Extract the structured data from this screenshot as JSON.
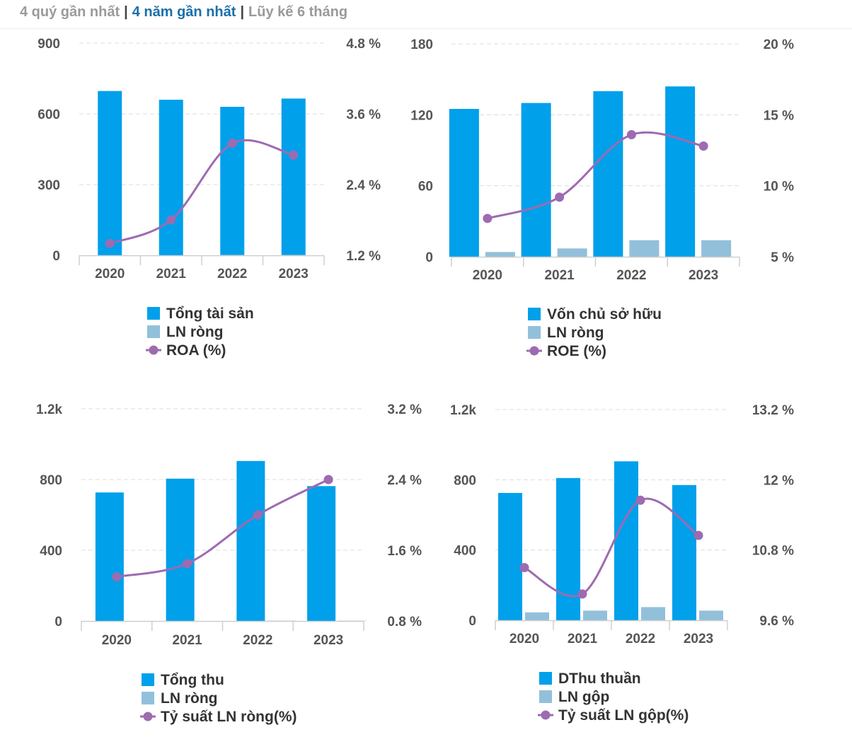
{
  "tabs": [
    {
      "label": "4 quý gần nhất",
      "active": false
    },
    {
      "label": "4 năm gần nhất",
      "active": true
    },
    {
      "label": "Lũy kế 6 tháng",
      "active": false
    }
  ],
  "colors": {
    "bar_primary": "#00a0ea",
    "bar_secondary": "#92c0da",
    "line": "#9d6bb0",
    "axis_text": "#555555",
    "grid": "#dcdcdc"
  },
  "chart_data": [
    {
      "type": "bar",
      "categories": [
        "2020",
        "2021",
        "2022",
        "2023"
      ],
      "left_ticks": [
        "0",
        "300",
        "600",
        "900"
      ],
      "right_ticks": [
        "1.2 %",
        "2.4 %",
        "3.6 %",
        "4.8 %"
      ],
      "ylim_left": [
        0,
        900
      ],
      "ylim_right": [
        1.2,
        4.8
      ],
      "series": [
        {
          "name": "Tổng tài sản",
          "kind": "bar",
          "axis": "left",
          "values": [
            697,
            660,
            630,
            665
          ]
        },
        {
          "name": "LN ròng",
          "kind": "bar",
          "axis": "left",
          "values": [
            1,
            1,
            2,
            2
          ]
        },
        {
          "name": "ROA (%)",
          "kind": "line",
          "axis": "right",
          "values": [
            1.4,
            1.8,
            3.1,
            2.9
          ]
        }
      ]
    },
    {
      "type": "bar",
      "categories": [
        "2020",
        "2021",
        "2022",
        "2023"
      ],
      "left_ticks": [
        "0",
        "60",
        "120",
        "180"
      ],
      "right_ticks": [
        "5 %",
        "10 %",
        "15 %",
        "20 %"
      ],
      "ylim_left": [
        0,
        180
      ],
      "ylim_right": [
        5,
        20
      ],
      "series": [
        {
          "name": "Vốn chủ sở hữu",
          "kind": "bar",
          "axis": "left",
          "values": [
            125,
            130,
            140,
            144
          ]
        },
        {
          "name": "LN ròng",
          "kind": "bar",
          "axis": "left",
          "values": [
            4,
            7,
            14,
            14
          ]
        },
        {
          "name": "ROE (%)",
          "kind": "line",
          "axis": "right",
          "values": [
            7.7,
            9.2,
            13.6,
            12.8
          ]
        }
      ]
    },
    {
      "type": "bar",
      "categories": [
        "2020",
        "2021",
        "2022",
        "2023"
      ],
      "left_ticks": [
        "0",
        "400",
        "800",
        "1.2k"
      ],
      "right_ticks": [
        "0.8 %",
        "1.6 %",
        "2.4 %",
        "3.2 %"
      ],
      "ylim_left": [
        0,
        1200
      ],
      "ylim_right": [
        0.8,
        3.2
      ],
      "series": [
        {
          "name": "Tổng thu",
          "kind": "bar",
          "axis": "left",
          "values": [
            727,
            805,
            905,
            763
          ]
        },
        {
          "name": "LN ròng",
          "kind": "bar",
          "axis": "left",
          "values": [
            1,
            1,
            2,
            2
          ]
        },
        {
          "name": "Tỷ suất LN ròng(%)",
          "kind": "line",
          "axis": "right",
          "values": [
            1.3,
            1.45,
            2.0,
            2.4
          ]
        }
      ]
    },
    {
      "type": "bar",
      "categories": [
        "2020",
        "2021",
        "2022",
        "2023"
      ],
      "left_ticks": [
        "0",
        "400",
        "800",
        "1.2k"
      ],
      "right_ticks": [
        "9.6 %",
        "10.8 %",
        "12 %",
        "13.2 %"
      ],
      "ylim_left": [
        0,
        1200
      ],
      "ylim_right": [
        9.6,
        13.2
      ],
      "series": [
        {
          "name": "DThu thuần",
          "kind": "bar",
          "axis": "left",
          "values": [
            725,
            810,
            905,
            770
          ]
        },
        {
          "name": "LN gộp",
          "kind": "bar",
          "axis": "left",
          "values": [
            45,
            55,
            75,
            55
          ]
        },
        {
          "name": "Tỷ suất LN gộp(%)",
          "kind": "line",
          "axis": "right",
          "values": [
            10.5,
            10.05,
            11.65,
            11.05
          ]
        }
      ]
    }
  ]
}
